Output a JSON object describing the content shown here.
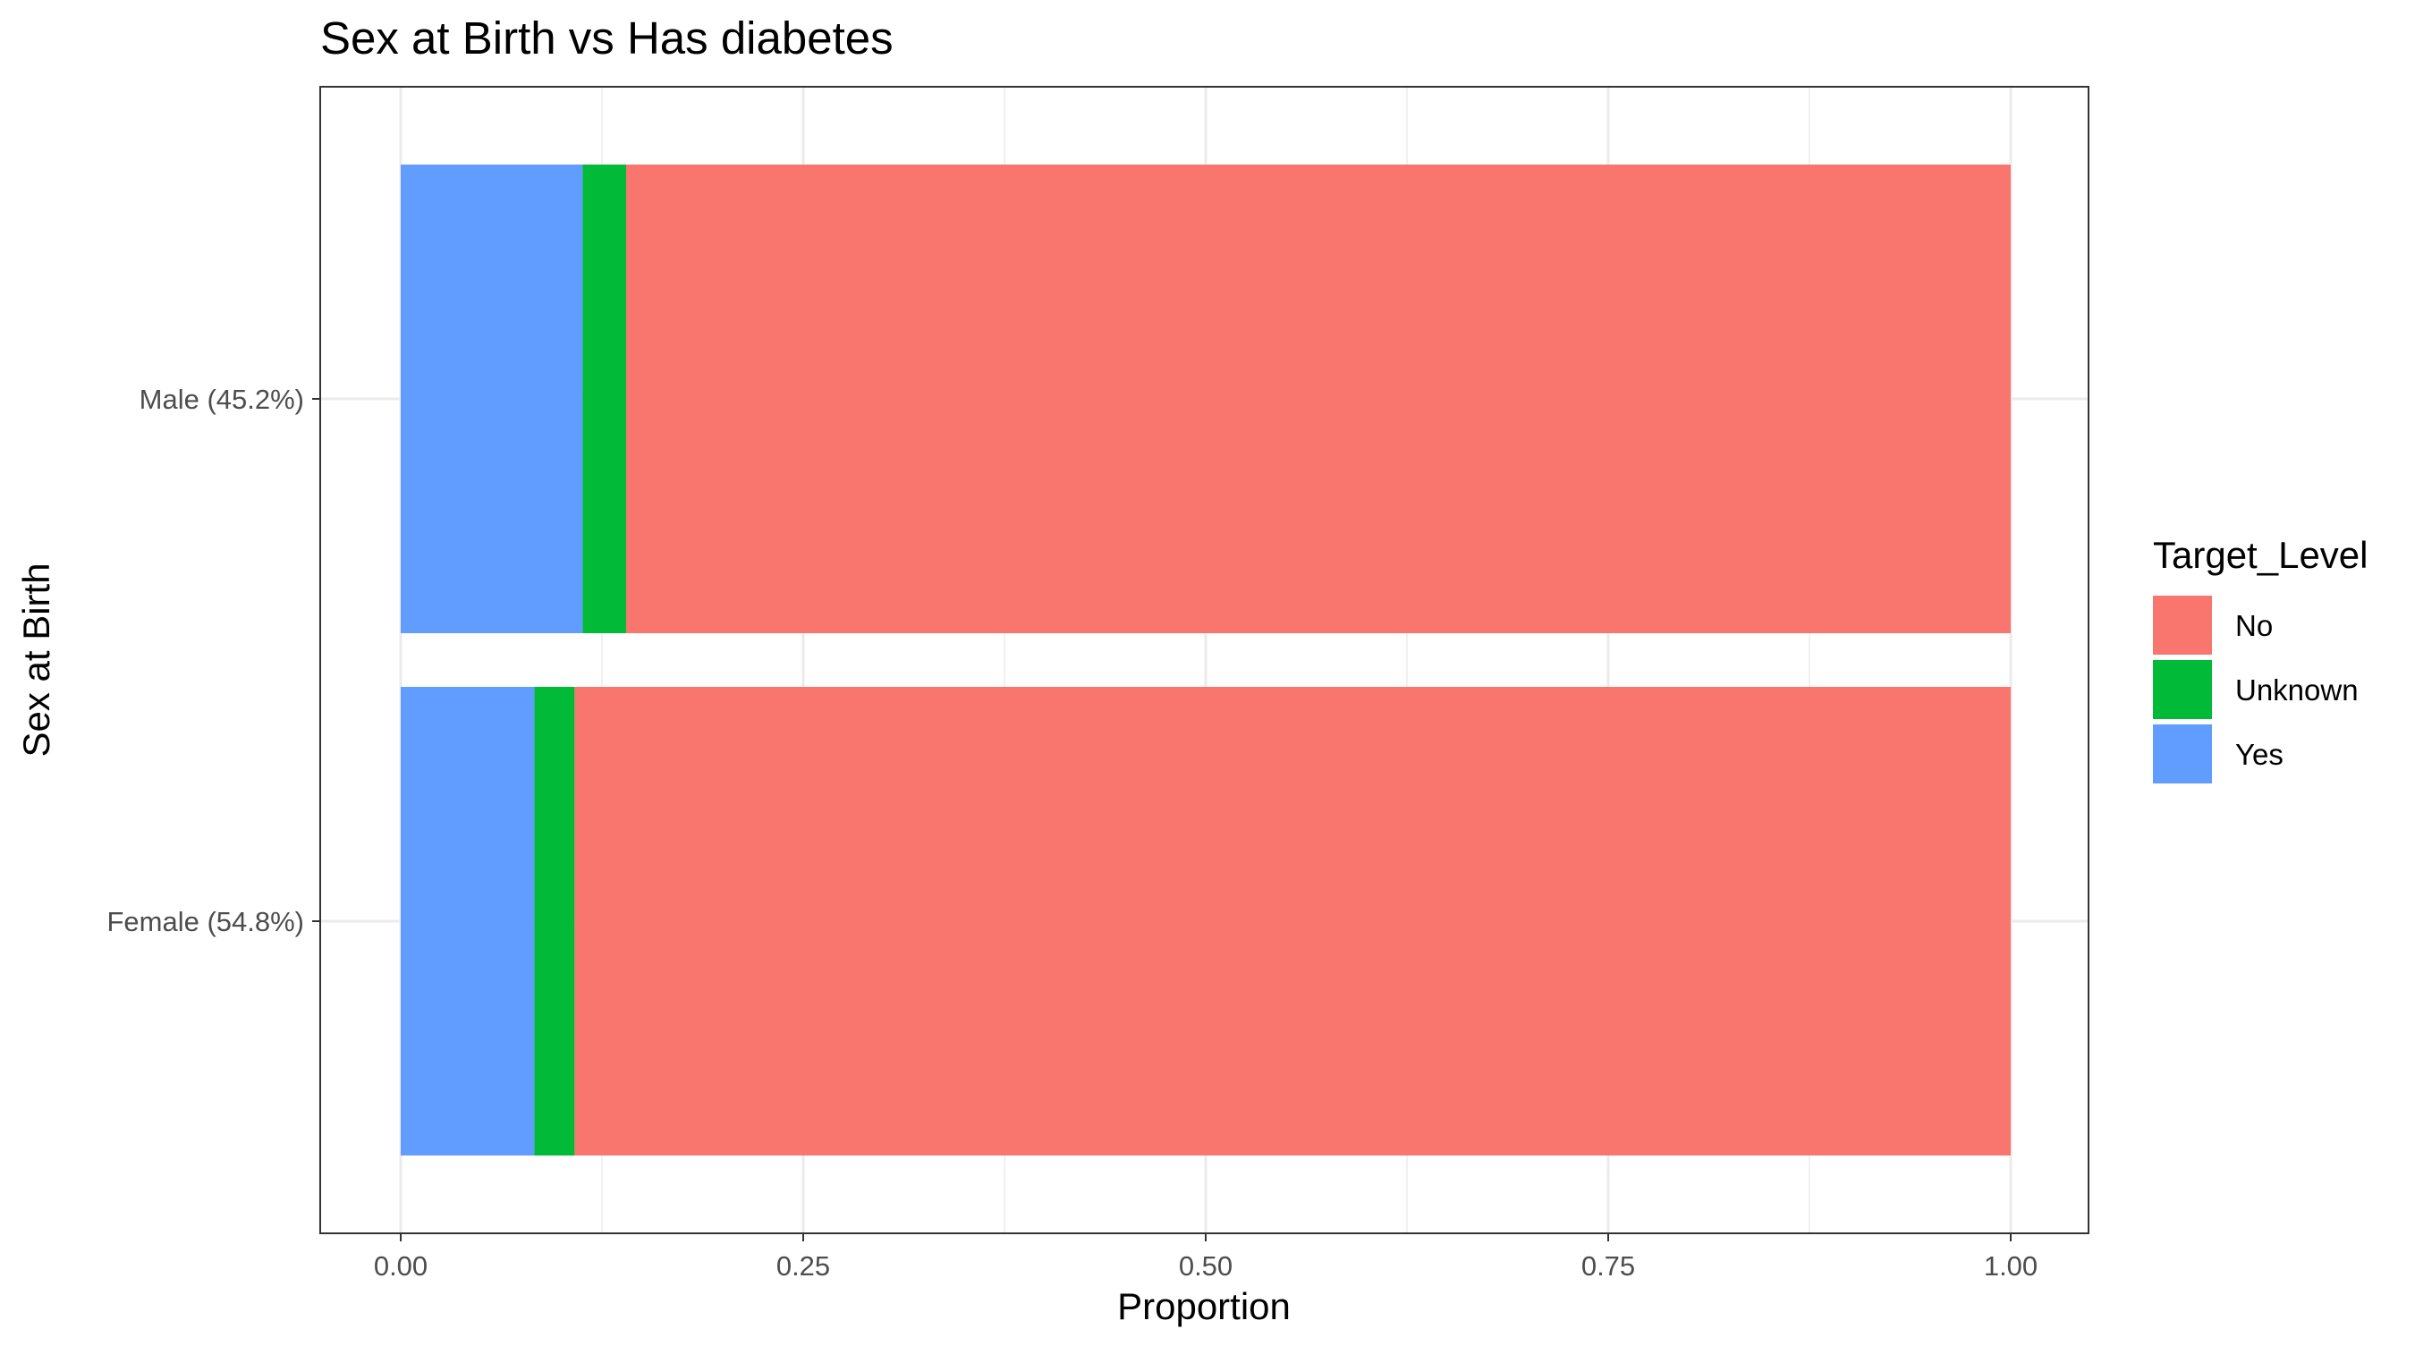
{
  "chart_data": {
    "type": "bar",
    "orientation": "horizontal",
    "stacked": true,
    "title": "Sex at Birth vs Has diabetes",
    "xlabel": "Proportion",
    "ylabel": "Sex at Birth",
    "xlim": [
      0,
      1
    ],
    "x_ticks": [
      "0.00",
      "0.25",
      "0.50",
      "0.75",
      "1.00"
    ],
    "grid": true,
    "legend_position": "right",
    "categories": [
      "Male (45.2%)",
      "Female (54.8%)"
    ],
    "series": [
      {
        "name": "Yes",
        "color": "#619CFF",
        "values": [
          0.113,
          0.083
        ]
      },
      {
        "name": "Unknown",
        "color": "#00BA38",
        "values": [
          0.027,
          0.025
        ]
      },
      {
        "name": "No",
        "color": "#F8766D",
        "values": [
          0.86,
          0.892
        ]
      }
    ],
    "legend": {
      "title": "Target_Level",
      "entries": [
        {
          "label": "No",
          "color": "#F8766D"
        },
        {
          "label": "Unknown",
          "color": "#00BA38"
        },
        {
          "label": "Yes",
          "color": "#619CFF"
        }
      ]
    }
  }
}
